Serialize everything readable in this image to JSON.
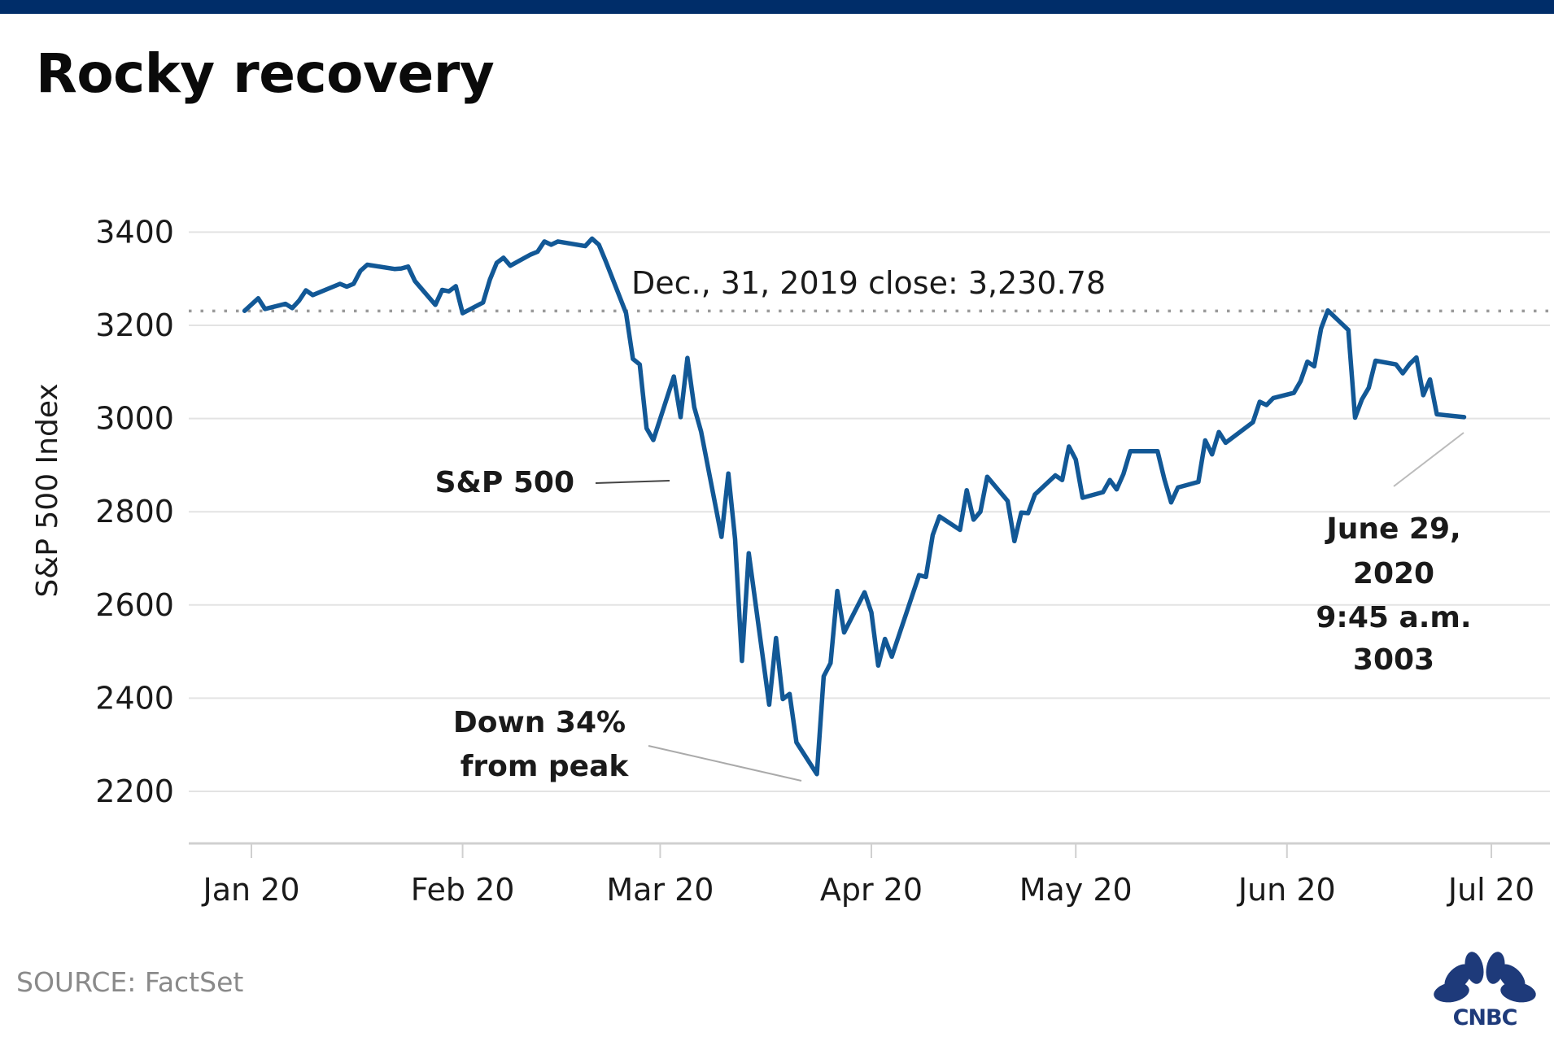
{
  "header": {
    "title": "Rocky recovery"
  },
  "footer": {
    "source": "SOURCE: FactSet",
    "logo": "CNBC"
  },
  "colors": {
    "line": "#125896",
    "topbar": "#002d69",
    "grid": "#e3e3e3",
    "reference": "#9a9a9a",
    "logo": "#1e3a7a"
  },
  "chart_data": {
    "type": "line",
    "title": "Rocky recovery",
    "xlabel": "",
    "ylabel": "S&P 500 Index",
    "ylim": [
      2100,
      3420
    ],
    "yticks": [
      2200,
      2400,
      2600,
      2800,
      3000,
      3200,
      3400
    ],
    "xticks": [
      {
        "label": "Jan 20",
        "day": 0
      },
      {
        "label": "Feb 20",
        "day": 31
      },
      {
        "label": "Mar 20",
        "day": 60
      },
      {
        "label": "Apr 20",
        "day": 91
      },
      {
        "label": "May 20",
        "day": 121
      },
      {
        "label": "Jun 20",
        "day": 152
      },
      {
        "label": "Jul 20",
        "day": 182
      }
    ],
    "x_unit": "days since Jan 1, 2020",
    "grid": true,
    "reference_line": {
      "value": 3230.78,
      "label": "Dec., 31, 2019 close:  3,230.78",
      "style": "dotted"
    },
    "series": [
      {
        "name": "S&P 500",
        "points": [
          [
            -1,
            3231
          ],
          [
            1,
            3258
          ],
          [
            2,
            3235
          ],
          [
            5,
            3246
          ],
          [
            6,
            3237
          ],
          [
            7,
            3253
          ],
          [
            8,
            3275
          ],
          [
            9,
            3265
          ],
          [
            13,
            3289
          ],
          [
            14,
            3283
          ],
          [
            15,
            3289
          ],
          [
            16,
            3317
          ],
          [
            17,
            3330
          ],
          [
            21,
            3321
          ],
          [
            22,
            3322
          ],
          [
            23,
            3326
          ],
          [
            24,
            3295
          ],
          [
            27,
            3244
          ],
          [
            28,
            3276
          ],
          [
            29,
            3273
          ],
          [
            30,
            3284
          ],
          [
            31,
            3226
          ],
          [
            34,
            3249
          ],
          [
            35,
            3298
          ],
          [
            36,
            3334
          ],
          [
            37,
            3345
          ],
          [
            38,
            3328
          ],
          [
            41,
            3352
          ],
          [
            42,
            3358
          ],
          [
            43,
            3380
          ],
          [
            44,
            3373
          ],
          [
            45,
            3380
          ],
          [
            49,
            3370
          ],
          [
            50,
            3386
          ],
          [
            51,
            3373
          ],
          [
            52,
            3338
          ],
          [
            55,
            3226
          ],
          [
            56,
            3128
          ],
          [
            57,
            3116
          ],
          [
            58,
            2979
          ],
          [
            59,
            2954
          ],
          [
            62,
            3090
          ],
          [
            63,
            3003
          ],
          [
            64,
            3130
          ],
          [
            65,
            3024
          ],
          [
            66,
            2972
          ],
          [
            69,
            2746
          ],
          [
            70,
            2882
          ],
          [
            71,
            2741
          ],
          [
            72,
            2480
          ],
          [
            73,
            2711
          ],
          [
            76,
            2386
          ],
          [
            77,
            2529
          ],
          [
            78,
            2398
          ],
          [
            79,
            2409
          ],
          [
            80,
            2305
          ],
          [
            83,
            2237
          ],
          [
            84,
            2447
          ],
          [
            85,
            2475
          ],
          [
            86,
            2630
          ],
          [
            87,
            2541
          ],
          [
            90,
            2627
          ],
          [
            91,
            2584
          ],
          [
            92,
            2470
          ],
          [
            93,
            2527
          ],
          [
            94,
            2489
          ],
          [
            98,
            2664
          ],
          [
            99,
            2660
          ],
          [
            100,
            2750
          ],
          [
            101,
            2790
          ],
          [
            104,
            2761
          ],
          [
            105,
            2846
          ],
          [
            106,
            2783
          ],
          [
            107,
            2800
          ],
          [
            108,
            2875
          ],
          [
            111,
            2823
          ],
          [
            112,
            2737
          ],
          [
            113,
            2798
          ],
          [
            114,
            2797
          ],
          [
            115,
            2837
          ],
          [
            118,
            2878
          ],
          [
            119,
            2868
          ],
          [
            120,
            2940
          ],
          [
            121,
            2912
          ],
          [
            122,
            2830
          ],
          [
            125,
            2842
          ],
          [
            126,
            2868
          ],
          [
            127,
            2848
          ],
          [
            128,
            2881
          ],
          [
            129,
            2930
          ],
          [
            132,
            2930
          ],
          [
            133,
            2930
          ],
          [
            134,
            2870
          ],
          [
            135,
            2820
          ],
          [
            136,
            2852
          ],
          [
            139,
            2864
          ],
          [
            140,
            2953
          ],
          [
            141,
            2923
          ],
          [
            142,
            2971
          ],
          [
            143,
            2948
          ],
          [
            147,
            2992
          ],
          [
            148,
            3036
          ],
          [
            149,
            3029
          ],
          [
            150,
            3044
          ],
          [
            153,
            3055
          ],
          [
            154,
            3080
          ],
          [
            155,
            3122
          ],
          [
            156,
            3112
          ],
          [
            157,
            3193
          ],
          [
            158,
            3232
          ],
          [
            161,
            3190
          ],
          [
            162,
            3002
          ],
          [
            163,
            3041
          ],
          [
            164,
            3066
          ],
          [
            165,
            3124
          ],
          [
            168,
            3116
          ],
          [
            169,
            3097
          ],
          [
            170,
            3117
          ],
          [
            171,
            3131
          ],
          [
            172,
            3050
          ],
          [
            173,
            3084
          ],
          [
            174,
            3009
          ],
          [
            178,
            3003
          ]
        ]
      }
    ],
    "annotations": [
      {
        "text": [
          "S&P 500"
        ],
        "target_day": 64,
        "target_value": 2822
      },
      {
        "text": [
          "Down 34%",
          "from peak"
        ],
        "target_day": 83,
        "target_value": 2237
      },
      {
        "text": [
          "June 29,",
          "2020",
          "9:45 a.m.",
          "3003"
        ],
        "target_day": 178,
        "target_value": 3003
      }
    ]
  }
}
